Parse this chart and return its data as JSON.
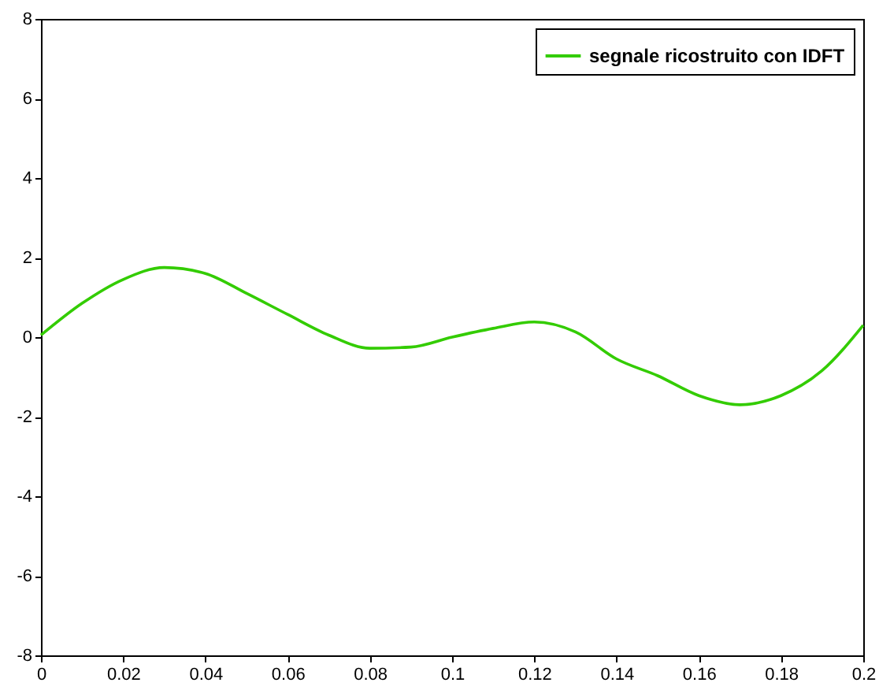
{
  "chart_data": {
    "type": "line",
    "xlim": [
      0,
      0.2
    ],
    "xticks": [
      0,
      0.02,
      0.04,
      0.06,
      0.08,
      0.1,
      0.12,
      0.14,
      0.16,
      0.18,
      0.2
    ],
    "ylim": [
      -8,
      8
    ],
    "yticks": [
      -8,
      -6,
      -4,
      -2,
      0,
      2,
      4,
      6,
      8
    ],
    "grid": false,
    "legend": "top right",
    "marker": "none",
    "line_style": "solid",
    "x": [
      0,
      0.01,
      0.02,
      0.03,
      0.04,
      0.05,
      0.06,
      0.07,
      0.08,
      0.09,
      0.1,
      0.11,
      0.12,
      0.13,
      0.14,
      0.15,
      0.16,
      0.17,
      0.18,
      0.19,
      0.2
    ],
    "series": [
      {
        "name": "segnale ricostruito con IDFT",
        "color": "#33cc00",
        "values": [
          0.05,
          0.85,
          1.45,
          1.75,
          1.6,
          1.1,
          0.57,
          0.05,
          -0.28,
          -0.25,
          0.0,
          0.22,
          0.38,
          0.13,
          -0.55,
          -0.97,
          -1.47,
          -1.7,
          -1.47,
          -0.84,
          0.3
        ]
      }
    ]
  }
}
